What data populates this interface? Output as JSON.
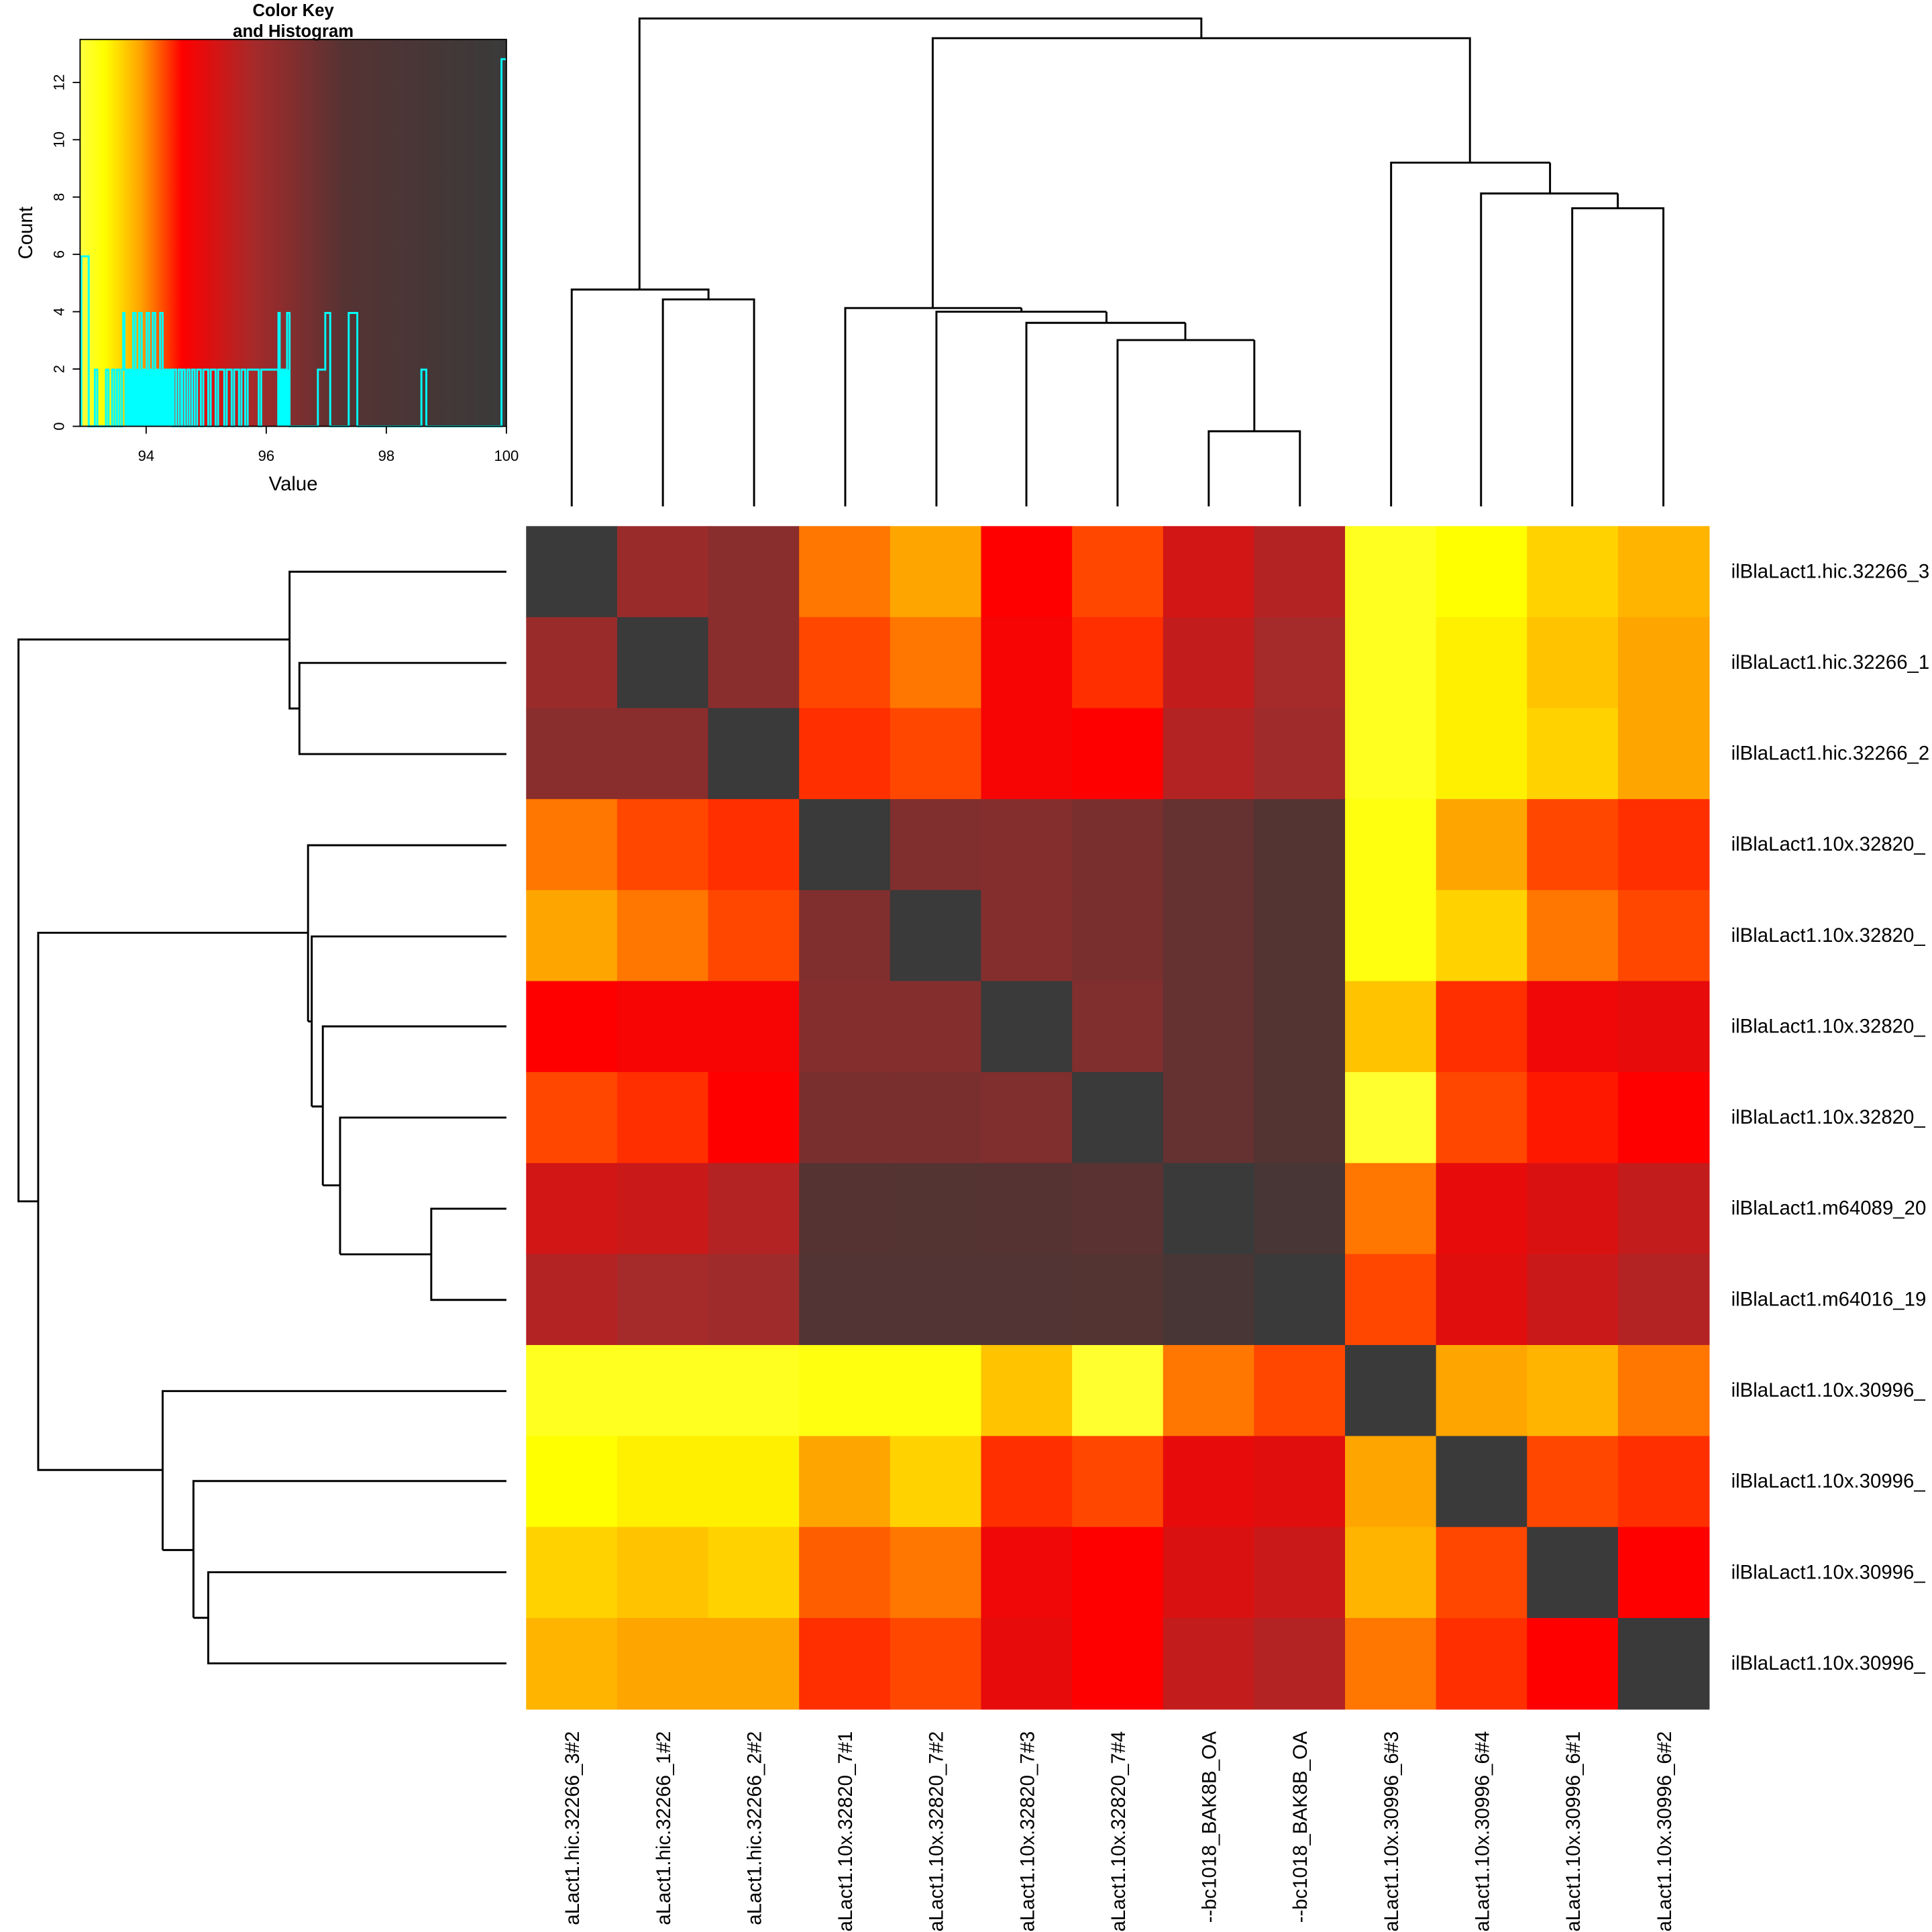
{
  "chart_data": {
    "type": "heatmap",
    "title": "",
    "row_labels": [
      "ilBlaLact1.hic.32266_3",
      "ilBlaLact1.hic.32266_1",
      "ilBlaLact1.hic.32266_2",
      "ilBlaLact1.10x.32820_",
      "ilBlaLact1.10x.32820_",
      "ilBlaLact1.10x.32820_",
      "ilBlaLact1.10x.32820_",
      "ilBlaLact1.m64089_20",
      "ilBlaLact1.m64016_19",
      "ilBlaLact1.10x.30996_",
      "ilBlaLact1.10x.30996_",
      "ilBlaLact1.10x.30996_",
      "ilBlaLact1.10x.30996_"
    ],
    "col_labels": [
      "aLact1.hic.32266_3#2",
      "aLact1.hic.32266_1#2",
      "aLact1.hic.32266_2#2",
      "aLact1.10x.32820_7#1",
      "aLact1.10x.32820_7#2",
      "aLact1.10x.32820_7#3",
      "aLact1.10x.32820_7#4",
      "--bc1018_BAK8B_OA",
      "--bc1018_BAK8B_OA",
      "aLact1.10x.30996_6#3",
      "aLact1.10x.30996_6#4",
      "aLact1.10x.30996_6#1",
      "aLact1.10x.30996_6#2"
    ],
    "values": [
      [
        100,
        96.0,
        96.3,
        94.1,
        93.9,
        94.6,
        94.3,
        95.2,
        95.6,
        93.1,
        93.3,
        93.6,
        93.8
      ],
      [
        96.0,
        100,
        96.3,
        94.3,
        94.1,
        94.7,
        94.4,
        95.4,
        95.8,
        93.1,
        93.4,
        93.7,
        93.9
      ],
      [
        96.3,
        96.3,
        100,
        94.4,
        94.3,
        94.7,
        94.6,
        95.6,
        95.9,
        93.1,
        93.4,
        93.6,
        93.9
      ],
      [
        94.1,
        94.3,
        94.4,
        100,
        96.5,
        96.4,
        96.6,
        97.0,
        97.4,
        93.2,
        93.9,
        94.3,
        94.4
      ],
      [
        93.9,
        94.1,
        94.3,
        96.5,
        100,
        96.4,
        96.6,
        97.0,
        97.4,
        93.2,
        93.6,
        94.1,
        94.3
      ],
      [
        94.6,
        94.7,
        94.7,
        96.4,
        96.4,
        100,
        96.5,
        97.0,
        97.4,
        93.7,
        94.4,
        94.8,
        94.9
      ],
      [
        94.3,
        94.4,
        94.6,
        96.6,
        96.6,
        96.5,
        100,
        97.0,
        97.4,
        93.0,
        94.3,
        94.5,
        94.6
      ],
      [
        95.2,
        95.3,
        95.6,
        97.3,
        97.4,
        97.3,
        97.2,
        100,
        98.6,
        94.1,
        94.9,
        95.1,
        95.4
      ],
      [
        95.6,
        95.8,
        95.9,
        97.5,
        97.5,
        97.5,
        97.4,
        98.6,
        100,
        94.3,
        95.0,
        95.3,
        95.6
      ],
      [
        93.1,
        93.1,
        93.1,
        93.2,
        93.2,
        93.7,
        93.0,
        94.1,
        94.3,
        100,
        93.9,
        93.8,
        94.1
      ],
      [
        93.3,
        93.4,
        93.4,
        93.9,
        93.6,
        94.4,
        94.3,
        94.9,
        95.0,
        93.9,
        100,
        94.3,
        94.4
      ],
      [
        93.6,
        93.7,
        93.6,
        94.2,
        94.1,
        94.8,
        94.6,
        95.1,
        95.3,
        93.8,
        94.3,
        100,
        94.6
      ],
      [
        93.8,
        93.9,
        93.9,
        94.4,
        94.3,
        94.9,
        94.6,
        95.4,
        95.6,
        94.1,
        94.4,
        94.6,
        100
      ]
    ],
    "color_stops": [
      [
        92.9,
        "#ffff40"
      ],
      [
        93.3,
        "#ffff00"
      ],
      [
        93.9,
        "#ffa500"
      ],
      [
        94.6,
        "#ff0000"
      ],
      [
        95.8,
        "#a52a2a"
      ],
      [
        97.3,
        "#553333"
      ],
      [
        100,
        "#3a3a3a"
      ]
    ],
    "color_key": {
      "title_line1": "Color Key",
      "title_line2": "and Histogram",
      "xlabel": "Value",
      "ylabel": "Count",
      "xlim": [
        92.9,
        100
      ],
      "ylim": [
        0,
        13.5
      ],
      "x_ticks": [
        "94",
        "96",
        "98",
        "100"
      ],
      "y_ticks": [
        "0",
        "2",
        "4",
        "6",
        "8",
        "10",
        "12"
      ],
      "histogram_color": "#00ffff"
    }
  }
}
